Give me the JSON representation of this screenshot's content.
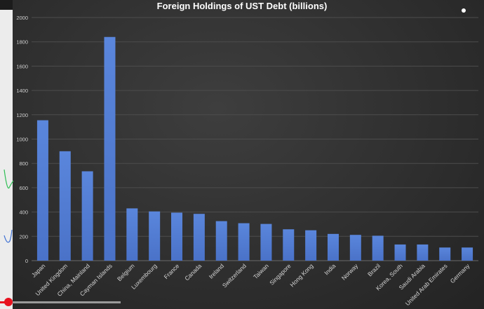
{
  "chart_data": {
    "type": "bar",
    "title": "Foreign Holdings of UST Debt (billions)",
    "categories": [
      "Japan",
      "United Kingdom",
      "China, Mainland",
      "Cayman Islands",
      "Belgium",
      "Luxembourg",
      "France",
      "Canada",
      "Ireland",
      "Switzerland",
      "Taiwan",
      "Singapore",
      "Hong Kong",
      "India",
      "Norway",
      "Brazil",
      "Korea, South",
      "Saudi Arabia",
      "United Arab Emirates",
      "Germany"
    ],
    "values": [
      1155,
      900,
      735,
      1840,
      430,
      405,
      395,
      385,
      325,
      308,
      302,
      258,
      250,
      220,
      212,
      205,
      133,
      133,
      108,
      108
    ],
    "ylim": [
      0,
      2000
    ],
    "yticks": [
      "0",
      "200",
      "400",
      "600",
      "800",
      "1000",
      "1200",
      "1400",
      "1600",
      "1800",
      "2000"
    ],
    "grid": true,
    "bar_color": "#4a72c8"
  },
  "player": {
    "progress": 0.07,
    "track_color": "#9a9a9a",
    "accent_color": "#e8121f"
  }
}
